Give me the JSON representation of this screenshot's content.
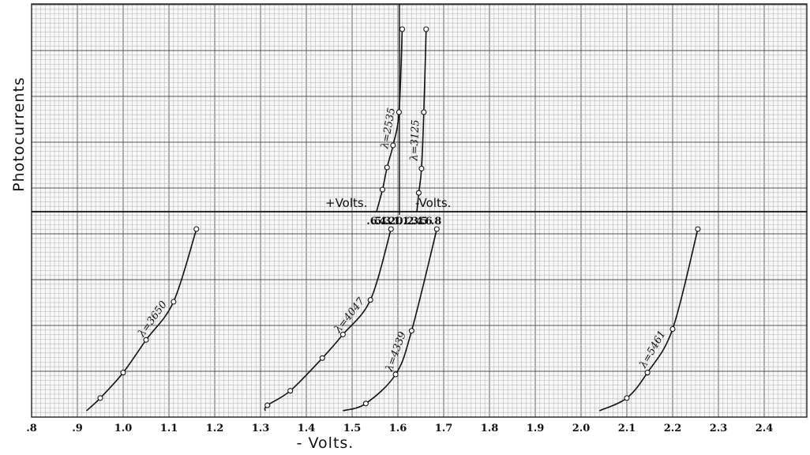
{
  "chart_data": {
    "type": "line",
    "title": "",
    "xlabel": "- Volts.",
    "ylabel": "Photocurrents",
    "sign_labels": {
      "plus": "+Volts.",
      "minus": "-Volts."
    },
    "upper_axis": {
      "ticks": [
        {
          "label": ".6",
          "value": -0.6
        },
        {
          "label": ".5",
          "value": -0.5
        },
        {
          "label": ".4",
          "value": -0.4
        },
        {
          "label": ".3",
          "value": -0.3
        },
        {
          "label": ".2",
          "value": -0.2
        },
        {
          "label": ".1",
          "value": -0.1
        },
        {
          "label": "0",
          "value": 0
        },
        {
          "label": ".1",
          "value": 0.1
        },
        {
          "label": ".2",
          "value": 0.2
        },
        {
          "label": ".3",
          "value": 0.3
        },
        {
          "label": ".4",
          "value": 0.4
        },
        {
          "label": ".5",
          "value": 0.5
        },
        {
          "label": ".6",
          "value": 0.6
        },
        {
          "label": ".8",
          "value": 0.8
        }
      ]
    },
    "lower_axis": {
      "ticks": [
        {
          "label": ".8",
          "value": 0.8
        },
        {
          "label": ".9",
          "value": 0.9
        },
        {
          "label": "1.0",
          "value": 1.0
        },
        {
          "label": "1.1",
          "value": 1.1
        },
        {
          "label": "1.2",
          "value": 1.2
        },
        {
          "label": "1.3",
          "value": 1.3
        },
        {
          "label": "1.4",
          "value": 1.4
        },
        {
          "label": "1.5",
          "value": 1.5
        },
        {
          "label": "1.6",
          "value": 1.6
        },
        {
          "label": "1.7",
          "value": 1.7
        },
        {
          "label": "1.8",
          "value": 1.8
        },
        {
          "label": "1.9",
          "value": 1.9
        },
        {
          "label": "2.0",
          "value": 2.0
        },
        {
          "label": "2.1",
          "value": 2.1
        },
        {
          "label": "2.2",
          "value": 2.2
        },
        {
          "label": "2.3",
          "value": 2.3
        },
        {
          "label": "2.4",
          "value": 2.4
        }
      ]
    },
    "series": [
      {
        "name": "λ=2535",
        "panel": "upper",
        "x": [
          -0.5,
          -0.37,
          -0.27,
          -0.14,
          -0.01,
          0.06
        ],
        "y": [
          0.0,
          0.2,
          0.4,
          0.6,
          0.9,
          1.65
        ]
      },
      {
        "name": "λ=3125",
        "panel": "upper",
        "x": [
          0.38,
          0.42,
          0.48,
          0.53,
          0.58
        ],
        "y": [
          0.0,
          0.17,
          0.39,
          0.9,
          1.65
        ]
      },
      {
        "name": "λ=3650",
        "panel": "lower",
        "x": [
          0.92,
          0.95,
          1.0,
          1.05,
          1.11,
          1.16
        ],
        "y": [
          0.0,
          0.07,
          0.21,
          0.39,
          0.6,
          1.0
        ]
      },
      {
        "name": "λ=4047",
        "panel": "lower",
        "x": [
          1.31,
          1.315,
          1.365,
          1.435,
          1.48,
          1.54,
          1.585
        ],
        "y": [
          0.0,
          0.03,
          0.11,
          0.29,
          0.42,
          0.61,
          1.0
        ]
      },
      {
        "name": "λ=4339",
        "panel": "lower",
        "x": [
          1.48,
          1.53,
          1.595,
          1.63,
          1.685
        ],
        "y": [
          0.0,
          0.04,
          0.2,
          0.44,
          1.0
        ]
      },
      {
        "name": "λ=5461",
        "panel": "lower",
        "x": [
          2.04,
          2.1,
          2.145,
          2.2,
          2.255
        ],
        "y": [
          0.0,
          0.07,
          0.21,
          0.45,
          1.0
        ]
      }
    ]
  }
}
